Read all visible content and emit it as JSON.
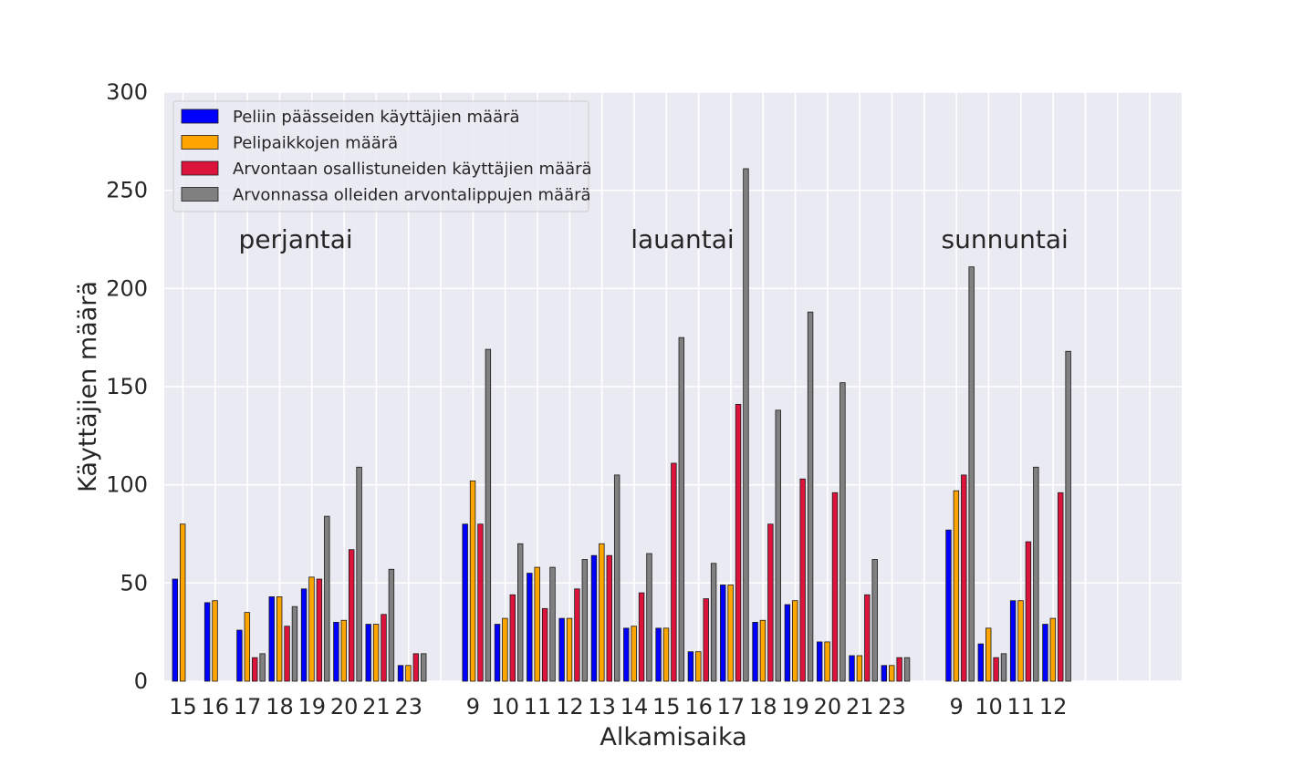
{
  "chart_data": {
    "type": "bar",
    "xlabel": "Alkamisaika",
    "ylabel": "Käyttäjien määrä",
    "ylim": [
      0,
      300
    ],
    "yticks": [
      0,
      50,
      100,
      150,
      200,
      250,
      300
    ],
    "grid": true,
    "legend_position": "top-left",
    "groups": [
      {
        "day": "perjantai",
        "categories": [
          "15",
          "16",
          "17",
          "18",
          "19",
          "20",
          "21",
          "23"
        ]
      },
      {
        "day": "lauantai",
        "categories": [
          "9",
          "10",
          "11",
          "12",
          "13",
          "14",
          "15",
          "16",
          "17",
          "18",
          "19",
          "20",
          "21",
          "23"
        ]
      },
      {
        "day": "sunnuntai",
        "categories": [
          "9",
          "10",
          "11",
          "12"
        ]
      }
    ],
    "series": [
      {
        "name": "Peliin päässeiden käyttäjien määrä",
        "color": "#0000ff",
        "values": [
          52,
          40,
          26,
          43,
          47,
          30,
          29,
          8,
          80,
          29,
          55,
          32,
          64,
          27,
          27,
          15,
          49,
          30,
          39,
          20,
          13,
          8,
          77,
          19,
          41,
          29
        ]
      },
      {
        "name": "Pelipaikkojen määrä",
        "color": "#ffa500",
        "values": [
          80,
          41,
          35,
          43,
          53,
          31,
          29,
          8,
          102,
          32,
          58,
          32,
          70,
          28,
          27,
          15,
          49,
          31,
          41,
          20,
          13,
          8,
          97,
          27,
          41,
          32
        ]
      },
      {
        "name": "Arvontaan osallistuneiden käyttäjien määrä",
        "color": "#dc143c",
        "values": [
          0,
          0,
          12,
          28,
          52,
          67,
          34,
          14,
          80,
          44,
          37,
          47,
          64,
          45,
          111,
          42,
          141,
          80,
          103,
          96,
          44,
          12,
          105,
          12,
          71,
          96
        ]
      },
      {
        "name": "Arvonnassa olleiden arvontalippujen määrä",
        "color": "#808080",
        "values": [
          0,
          0,
          14,
          38,
          84,
          109,
          57,
          14,
          169,
          70,
          58,
          62,
          105,
          65,
          175,
          60,
          261,
          138,
          188,
          152,
          62,
          12,
          211,
          14,
          109,
          168
        ]
      }
    ]
  }
}
